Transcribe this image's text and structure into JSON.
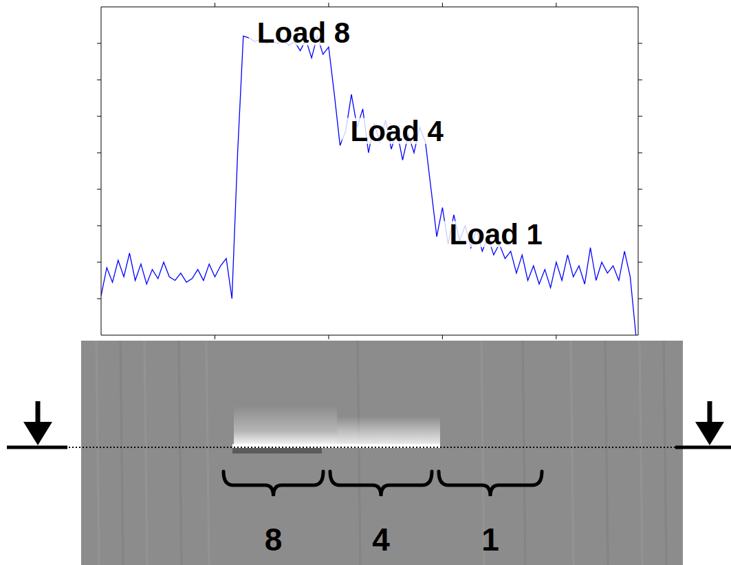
{
  "chart_data": {
    "type": "line",
    "x": [
      0,
      0.05,
      0.1,
      0.15,
      0.2,
      0.25,
      0.3,
      0.35,
      0.4,
      0.45,
      0.5,
      0.55,
      0.6,
      0.65,
      0.7,
      0.75,
      0.8,
      0.85,
      0.9,
      0.95,
      1.0,
      1.05,
      1.1,
      1.15,
      1.2,
      1.25,
      1.3,
      1.35,
      1.4,
      1.45,
      1.5,
      1.55,
      1.6,
      1.65,
      1.7,
      1.75,
      1.8,
      1.85,
      1.9,
      1.95,
      2.0,
      2.05,
      2.1,
      2.15,
      2.2,
      2.25,
      2.3,
      2.35,
      2.4,
      2.45,
      2.5,
      2.55,
      2.6,
      2.65,
      2.7,
      2.75,
      2.8,
      2.85,
      2.9,
      2.95,
      3.0,
      3.05,
      3.1,
      3.15,
      3.2,
      3.25,
      3.3,
      3.35,
      3.4,
      3.45,
      3.5,
      3.55,
      3.6,
      3.65,
      3.7,
      3.75,
      3.8,
      3.85,
      3.9,
      3.95,
      4.0,
      4.05,
      4.1,
      4.15,
      4.2,
      4.25,
      4.3,
      4.35,
      4.4,
      4.45,
      4.5,
      4.55,
      4.6,
      4.65,
      4.7
    ],
    "values": [
      1.08,
      1.85,
      1.45,
      2.05,
      1.6,
      2.25,
      1.5,
      1.95,
      1.4,
      1.8,
      1.55,
      2.0,
      1.6,
      1.5,
      1.7,
      1.45,
      1.55,
      1.8,
      1.5,
      1.95,
      1.6,
      1.9,
      2.1,
      1.0,
      5.0,
      8.2,
      8.15,
      8.05,
      8.1,
      8.0,
      8.05,
      8.0,
      8.1,
      7.95,
      8.05,
      7.8,
      8.1,
      7.6,
      8.2,
      7.7,
      7.9,
      6.6,
      5.2,
      5.6,
      6.6,
      5.7,
      6.2,
      5.0,
      5.8,
      5.3,
      5.9,
      5.1,
      5.6,
      4.8,
      5.5,
      5.0,
      5.7,
      5.3,
      4.0,
      2.7,
      3.5,
      2.5,
      3.3,
      2.6,
      3.0,
      2.4,
      2.9,
      2.3,
      2.7,
      2.2,
      2.5,
      2.1,
      2.3,
      1.7,
      2.2,
      1.5,
      1.9,
      1.4,
      1.8,
      1.3,
      2.0,
      1.5,
      2.2,
      1.6,
      1.9,
      1.4,
      2.4,
      1.5,
      2.0,
      1.7,
      1.9,
      1.5,
      2.3,
      1.6,
      0.0
    ],
    "color": "#0000ff",
    "xlim": [
      0,
      4.72
    ],
    "xticks": [
      1,
      2,
      3,
      4
    ],
    "ylim": [
      0,
      9
    ],
    "yticks": [
      1,
      2,
      3,
      4,
      5,
      6,
      7,
      8
    ],
    "tick_labels": false,
    "grid": false,
    "annotations": [
      {
        "text": "Load 8",
        "x": 1.78,
        "y": 8.3
      },
      {
        "text": "Load 4",
        "x": 2.6,
        "y": 5.6
      },
      {
        "text": "Load 1",
        "x": 3.47,
        "y": 2.77
      }
    ]
  },
  "image_panel": {
    "bracket_labels": [
      "8",
      "4",
      "1"
    ]
  }
}
